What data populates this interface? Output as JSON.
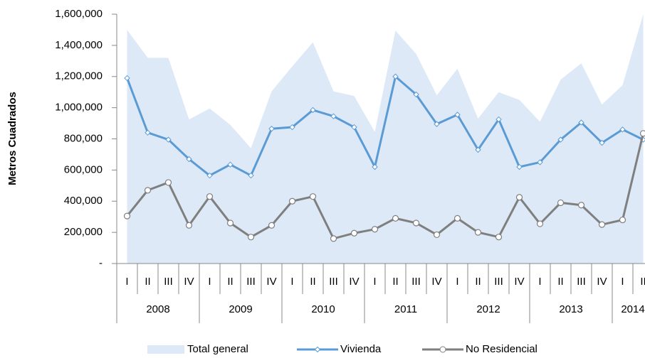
{
  "chart_data": {
    "type": "line",
    "y_label": "Metros Cuadrados",
    "categories": [
      "I",
      "II",
      "III",
      "IV",
      "I",
      "II",
      "III",
      "IV",
      "I",
      "II",
      "III",
      "IV",
      "I",
      "II",
      "III",
      "IV",
      "I",
      "II",
      "III",
      "IV",
      "I",
      "II",
      "III",
      "IV",
      "I",
      "II"
    ],
    "category_groups": [
      {
        "label": "2008",
        "count": 4
      },
      {
        "label": "2009",
        "count": 4
      },
      {
        "label": "2010",
        "count": 4
      },
      {
        "label": "2011",
        "count": 4
      },
      {
        "label": "2012",
        "count": 4
      },
      {
        "label": "2013",
        "count": 4
      },
      {
        "label": "2014",
        "count": 2
      }
    ],
    "ylim": [
      0,
      1600000
    ],
    "yticks": [
      {
        "value": 0,
        "label": "-"
      },
      {
        "value": 200000,
        "label": "200,000"
      },
      {
        "value": 400000,
        "label": "400,000"
      },
      {
        "value": 600000,
        "label": "600,000"
      },
      {
        "value": 800000,
        "label": "800,000"
      },
      {
        "value": 1000000,
        "label": "1,000,000"
      },
      {
        "value": 1200000,
        "label": "1,200,000"
      },
      {
        "value": 1400000,
        "label": "1,400,000"
      },
      {
        "value": 1600000,
        "label": "1,600,000"
      }
    ],
    "legend": "bottom",
    "series": [
      {
        "name": "Total general",
        "kind": "area",
        "color": "#dde9f6",
        "values": [
          1500000,
          1320000,
          1320000,
          925000,
          995000,
          890000,
          740000,
          1105000,
          1265000,
          1420000,
          1105000,
          1075000,
          845000,
          1495000,
          1345000,
          1080000,
          1250000,
          930000,
          1100000,
          1050000,
          910000,
          1180000,
          1285000,
          1020000,
          1145000,
          1600000
        ]
      },
      {
        "name": "Vivienda",
        "kind": "line",
        "marker": "diamond",
        "color": "#5b9bd5",
        "values": [
          1190000,
          840000,
          795000,
          670000,
          565000,
          635000,
          565000,
          865000,
          875000,
          985000,
          945000,
          875000,
          620000,
          1200000,
          1085000,
          895000,
          955000,
          730000,
          925000,
          620000,
          650000,
          795000,
          905000,
          775000,
          860000,
          795000
        ]
      },
      {
        "name": "No Residencial",
        "kind": "line",
        "marker": "circle",
        "color": "#7f7f7f",
        "values": [
          305000,
          470000,
          520000,
          245000,
          430000,
          260000,
          170000,
          245000,
          400000,
          430000,
          160000,
          195000,
          220000,
          290000,
          260000,
          185000,
          290000,
          200000,
          170000,
          425000,
          255000,
          390000,
          375000,
          250000,
          280000,
          835000
        ]
      }
    ]
  }
}
